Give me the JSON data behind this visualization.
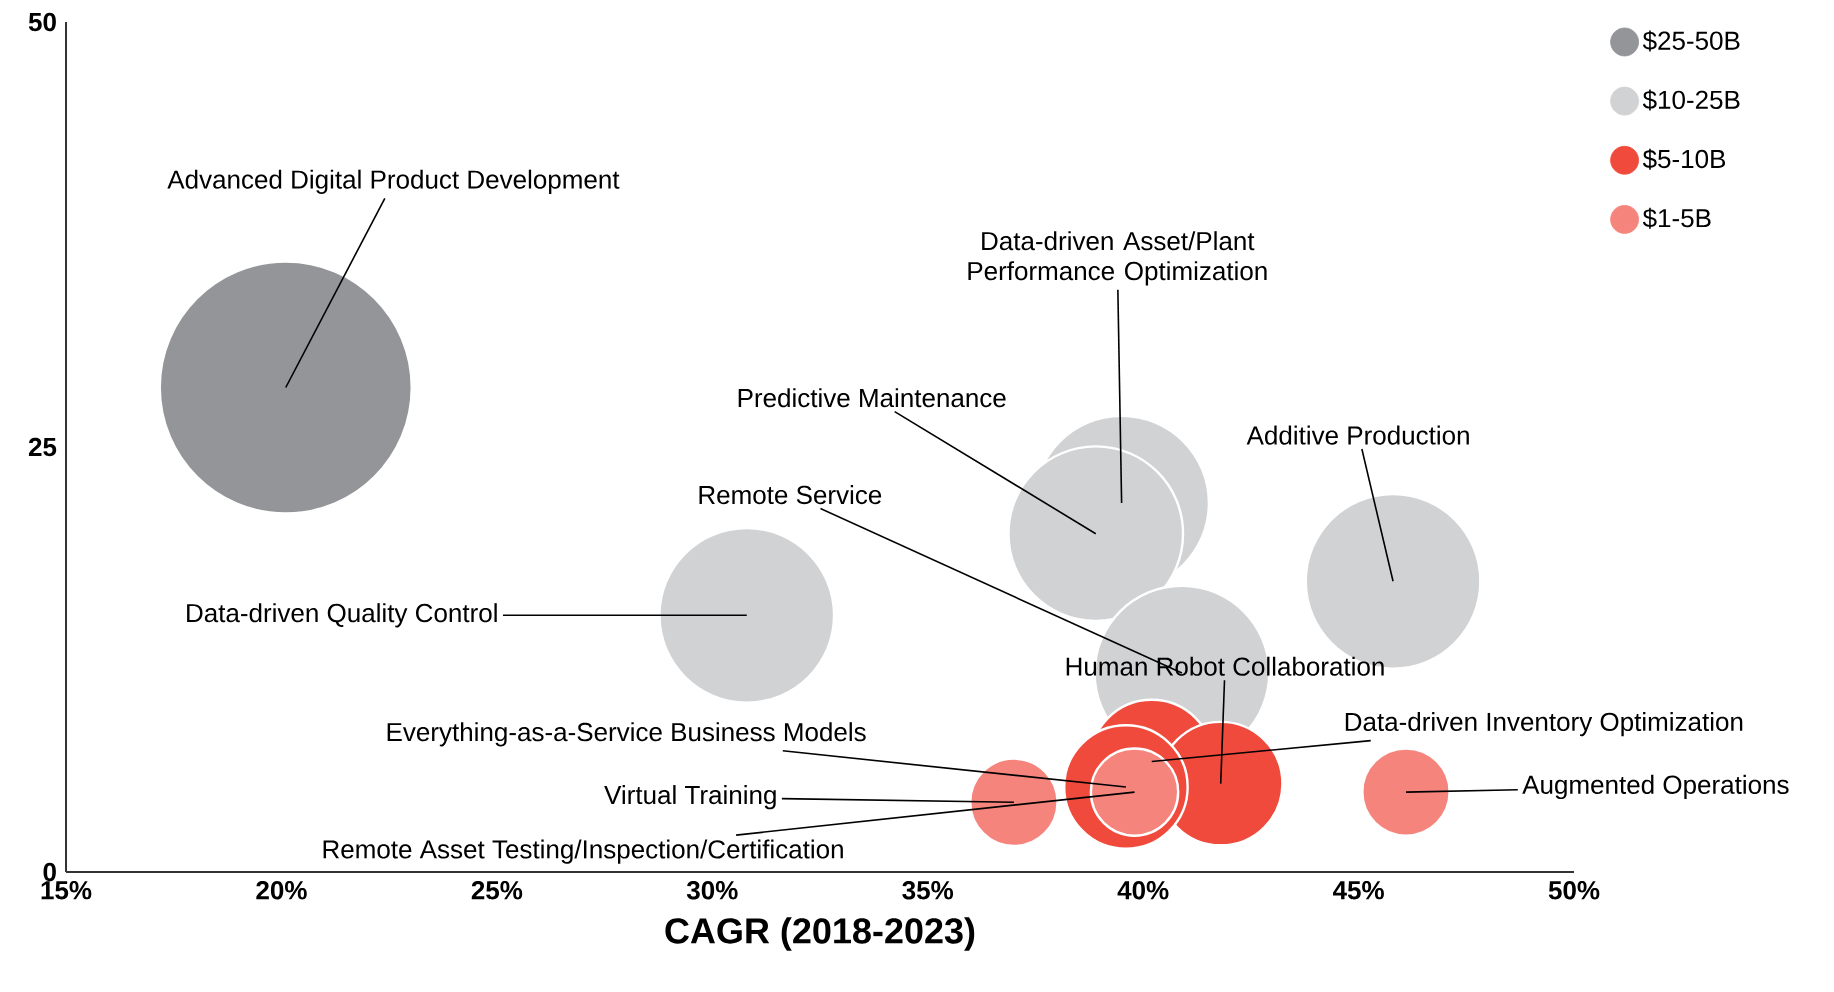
{
  "chart_data": {
    "type": "bubble",
    "xlabel": "CAGR (2018-2023)",
    "xlim": [
      15,
      50
    ],
    "xticks": [
      {
        "value": 15,
        "label": "15%"
      },
      {
        "value": 20,
        "label": "20%"
      },
      {
        "value": 25,
        "label": "25%"
      },
      {
        "value": 30,
        "label": "30%"
      },
      {
        "value": 35,
        "label": "35%"
      },
      {
        "value": 40,
        "label": "40%"
      },
      {
        "value": 45,
        "label": "45%"
      },
      {
        "value": 50,
        "label": "50%"
      }
    ],
    "ylim": [
      0,
      50
    ],
    "yticks": [
      0,
      25,
      50
    ],
    "legend": "top right",
    "series": [
      {
        "name": "$25-50B",
        "color": "#939598",
        "x": [
          20.1
        ],
        "values": [
          28.5
        ],
        "sizes": [
          1
        ]
      },
      {
        "name": "$10-25B",
        "color": "#d1d2d4",
        "x": [
          39.5,
          38.9,
          40.9,
          45.8,
          30.8
        ],
        "values": [
          21.7,
          19.9,
          11.7,
          17.1,
          15.1
        ],
        "sizes": [
          0.48,
          0.48,
          0.48,
          0.48,
          0.48
        ]
      },
      {
        "name": "$5-10B",
        "color": "#f04a3c",
        "x": [
          40.2,
          41.8,
          39.6
        ],
        "values": [
          6.5,
          5.2,
          5.0
        ],
        "sizes": [
          0.24,
          0.24,
          0.24
        ]
      },
      {
        "name": "$1-5B",
        "color": "#f5847c",
        "x": [
          37.0,
          39.8,
          46.1
        ],
        "values": [
          4.1,
          4.7,
          4.7
        ],
        "sizes": [
          0.12,
          0.12,
          0.12
        ]
      }
    ],
    "annotations": [
      {
        "text": "Advanced Digital Product Development",
        "x": 20.1,
        "y": 28.5
      },
      {
        "text": "Data-driven Asset/Plant Performance Optimization",
        "x": 39.5,
        "y": 21.7
      },
      {
        "text": "Predictive Maintenance",
        "x": 38.9,
        "y": 19.9
      },
      {
        "text": "Remote Service",
        "x": 40.9,
        "y": 11.7
      },
      {
        "text": "Additive Production",
        "x": 45.8,
        "y": 17.1
      },
      {
        "text": "Data-driven Quality Control",
        "x": 30.8,
        "y": 15.1
      },
      {
        "text": "Human Robot Collaboration",
        "x": 41.8,
        "y": 5.2
      },
      {
        "text": "Data-driven Inventory Optimization",
        "x": 40.2,
        "y": 6.5
      },
      {
        "text": "Everything-as-a-Service Business Models",
        "x": 39.6,
        "y": 5.0
      },
      {
        "text": "Virtual Training",
        "x": 37.0,
        "y": 4.1
      },
      {
        "text": "Remote Asset Testing/Inspection/Certification",
        "x": 39.8,
        "y": 4.7
      },
      {
        "text": "Augmented Operations",
        "x": 46.1,
        "y": 4.7
      }
    ]
  }
}
